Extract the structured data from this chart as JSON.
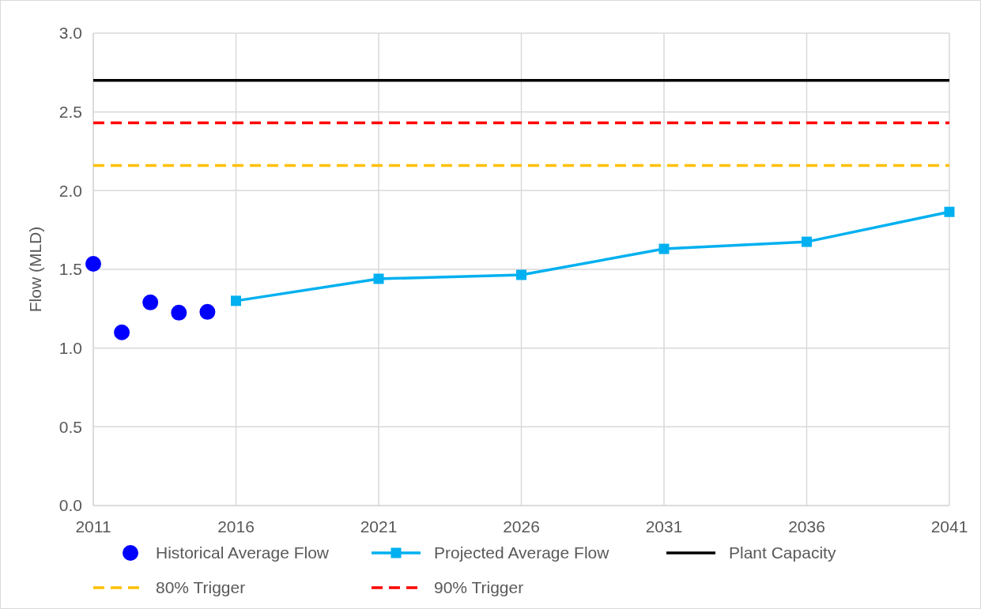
{
  "chart_data": {
    "type": "line",
    "ylabel": "Flow (MLD)",
    "xlim": [
      2011,
      2041
    ],
    "xticks": [
      2011,
      2016,
      2021,
      2026,
      2031,
      2036,
      2041
    ],
    "ylim": [
      0,
      3
    ],
    "yticks": [
      {
        "value": 0,
        "label": "0.0"
      },
      {
        "value": 0.5,
        "label": "0.5"
      },
      {
        "value": 1,
        "label": "1.0"
      },
      {
        "value": 1.5,
        "label": "1.5"
      },
      {
        "value": 2,
        "label": "2.0"
      },
      {
        "value": 2.5,
        "label": "2.5"
      },
      {
        "value": 3,
        "label": "3.0"
      }
    ],
    "grid": true,
    "legend": "bottom",
    "series": [
      {
        "name": "Historical Average Flow",
        "type": "scatter",
        "marker": "circle",
        "color": "#0000ff",
        "x": [
          2011,
          2012,
          2013,
          2014,
          2015
        ],
        "values": [
          1.535,
          1.1,
          1.29,
          1.225,
          1.23
        ]
      },
      {
        "name": "Projected Average Flow",
        "marker": "square",
        "line_style": "solid",
        "color": "#00b0f0",
        "x": [
          2016,
          2021,
          2026,
          2031,
          2036,
          2041
        ],
        "values": [
          1.3,
          1.44,
          1.465,
          1.63,
          1.675,
          1.865
        ]
      },
      {
        "name": "Plant Capacity",
        "marker": "none",
        "line_style": "solid",
        "color": "#000000",
        "x": [
          2011,
          2041
        ],
        "values": [
          2.7,
          2.7
        ]
      },
      {
        "name": "80% Trigger",
        "marker": "none",
        "line_style": "dashed",
        "color": "#ffc000",
        "x": [
          2011,
          2041
        ],
        "values": [
          2.16,
          2.16
        ]
      },
      {
        "name": "90% Trigger",
        "marker": "none",
        "line_style": "dashed",
        "color": "#ff0000",
        "x": [
          2011,
          2041
        ],
        "values": [
          2.43,
          2.43
        ]
      }
    ]
  }
}
